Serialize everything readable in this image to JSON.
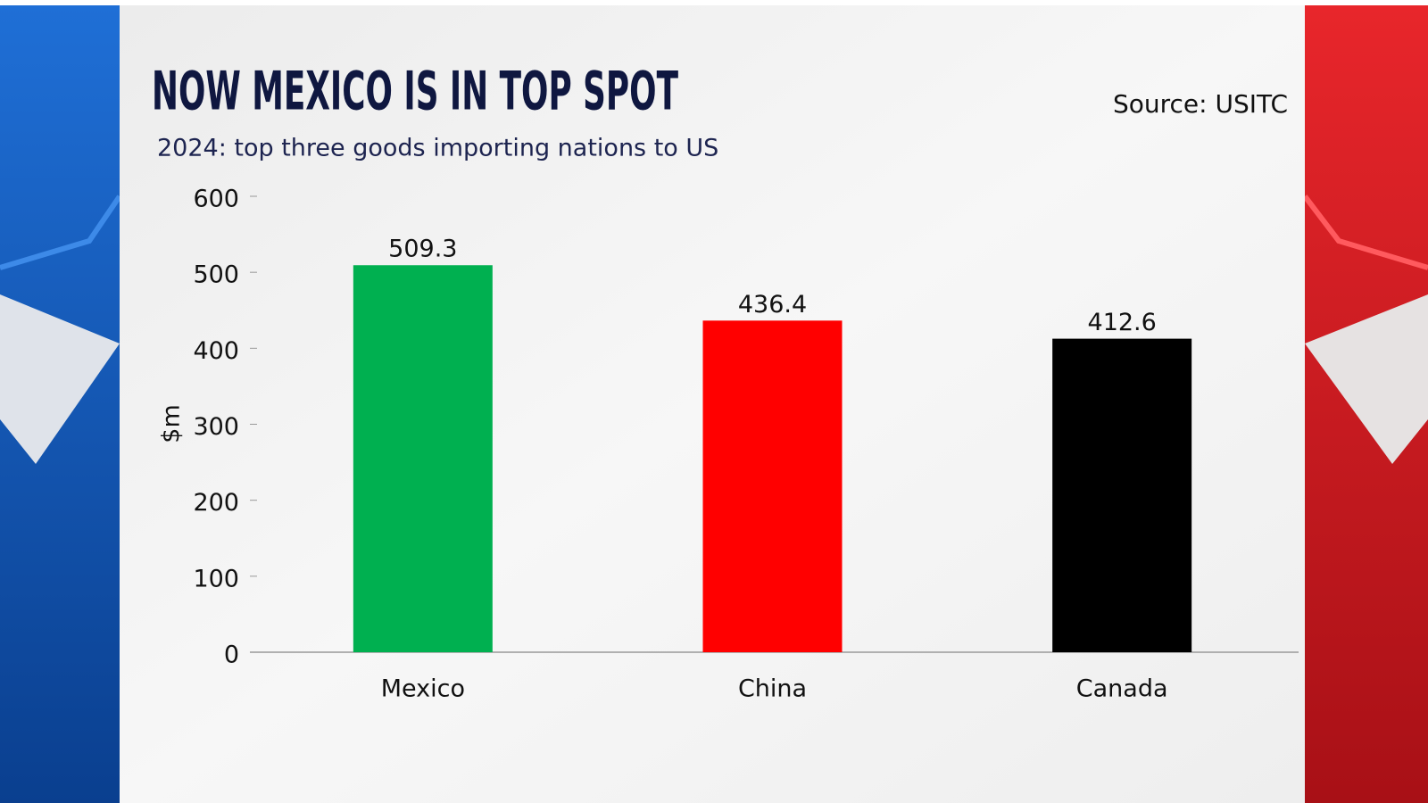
{
  "chart_data": {
    "type": "bar",
    "title": "NOW MEXICO IS IN TOP SPOT",
    "subtitle": "2024: top three goods importing nations to US",
    "source": "Source: USITC",
    "y_label": "$m",
    "categories": [
      "Mexico",
      "China",
      "Canada"
    ],
    "values": [
      509.3,
      436.4,
      412.6
    ],
    "colors": [
      "#00b050",
      "#ff0000",
      "#000000"
    ],
    "ylim": [
      0,
      600
    ],
    "yticks": [
      0,
      100,
      200,
      300,
      400,
      500,
      600
    ],
    "grid": false
  }
}
